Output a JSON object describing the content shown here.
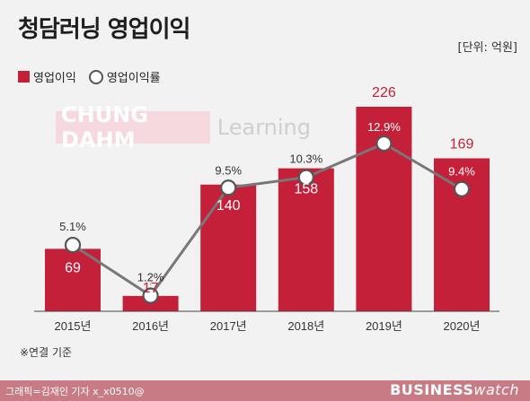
{
  "header": {
    "title": "청담러닝 영업이익",
    "unit": "[단위: 억원]"
  },
  "legend": {
    "bar_label": "영업이익",
    "line_label": "영업이익률"
  },
  "logo": {
    "main": "CHUNG DAHM",
    "sub": "Learning"
  },
  "note": "※연결 기준",
  "footer": {
    "credit": "그래픽=김재인 기자 x_x0510@",
    "brand_bold": "BUSINESS",
    "brand_light": "watch"
  },
  "colors": {
    "bar": "#c4203a",
    "line": "#777777",
    "marker_fill": "#ffffff",
    "marker_stroke": "#555555"
  },
  "chart_data": {
    "type": "bar",
    "categories": [
      "2015년",
      "2016년",
      "2017년",
      "2018년",
      "2019년",
      "2020년"
    ],
    "series": [
      {
        "name": "영업이익",
        "type": "bar",
        "values": [
          69,
          17,
          140,
          158,
          226,
          169
        ]
      },
      {
        "name": "영업이익률",
        "type": "line",
        "values": [
          5.1,
          1.2,
          9.5,
          10.3,
          12.9,
          9.4
        ],
        "labels": [
          "5.1%",
          "1.2%",
          "9.5%",
          "10.3%",
          "12.9%",
          "9.4%"
        ]
      }
    ],
    "bar_ylim": [
      0,
      226
    ],
    "line_ylim": [
      0,
      12.9
    ]
  }
}
